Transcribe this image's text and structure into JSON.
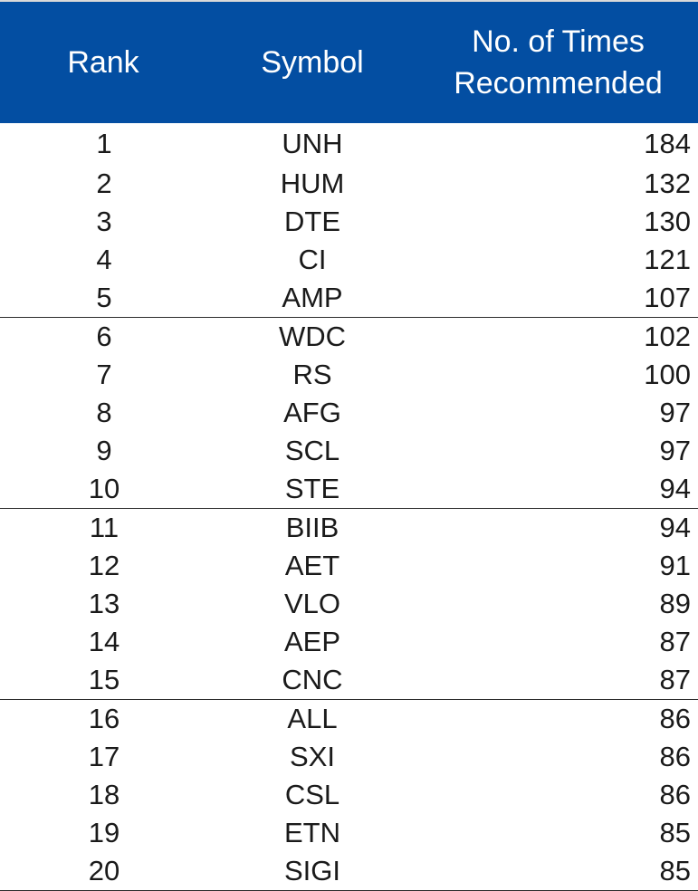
{
  "colors": {
    "header_bg": "#034ea2",
    "header_text": "#ffffff",
    "body_text": "#1a1a1a",
    "group_rule": "#2b2b2b"
  },
  "chart_data": {
    "type": "table",
    "columns": [
      "Rank",
      "Symbol",
      "No. of Times Recommended"
    ],
    "header": {
      "rank": "Rank",
      "symbol": "Symbol",
      "count_line1": "No. of Times",
      "count_line2": "Recommended"
    },
    "rows": [
      {
        "rank": "1",
        "symbol": "UNH",
        "count": "184"
      },
      {
        "rank": "2",
        "symbol": "HUM",
        "count": "132"
      },
      {
        "rank": "3",
        "symbol": "DTE",
        "count": "130"
      },
      {
        "rank": "4",
        "symbol": "CI",
        "count": "121"
      },
      {
        "rank": "5",
        "symbol": "AMP",
        "count": "107"
      },
      {
        "rank": "6",
        "symbol": "WDC",
        "count": "102"
      },
      {
        "rank": "7",
        "symbol": "RS",
        "count": "100"
      },
      {
        "rank": "8",
        "symbol": "AFG",
        "count": "97"
      },
      {
        "rank": "9",
        "symbol": "SCL",
        "count": "97"
      },
      {
        "rank": "10",
        "symbol": "STE",
        "count": "94"
      },
      {
        "rank": "11",
        "symbol": "BIIB",
        "count": "94"
      },
      {
        "rank": "12",
        "symbol": "AET",
        "count": "91"
      },
      {
        "rank": "13",
        "symbol": "VLO",
        "count": "89"
      },
      {
        "rank": "14",
        "symbol": "AEP",
        "count": "87"
      },
      {
        "rank": "15",
        "symbol": "CNC",
        "count": "87"
      },
      {
        "rank": "16",
        "symbol": "ALL",
        "count": "86"
      },
      {
        "rank": "17",
        "symbol": "SXI",
        "count": "86"
      },
      {
        "rank": "18",
        "symbol": "CSL",
        "count": "86"
      },
      {
        "rank": "19",
        "symbol": "ETN",
        "count": "85"
      },
      {
        "rank": "20",
        "symbol": "SIGI",
        "count": "85"
      }
    ]
  }
}
